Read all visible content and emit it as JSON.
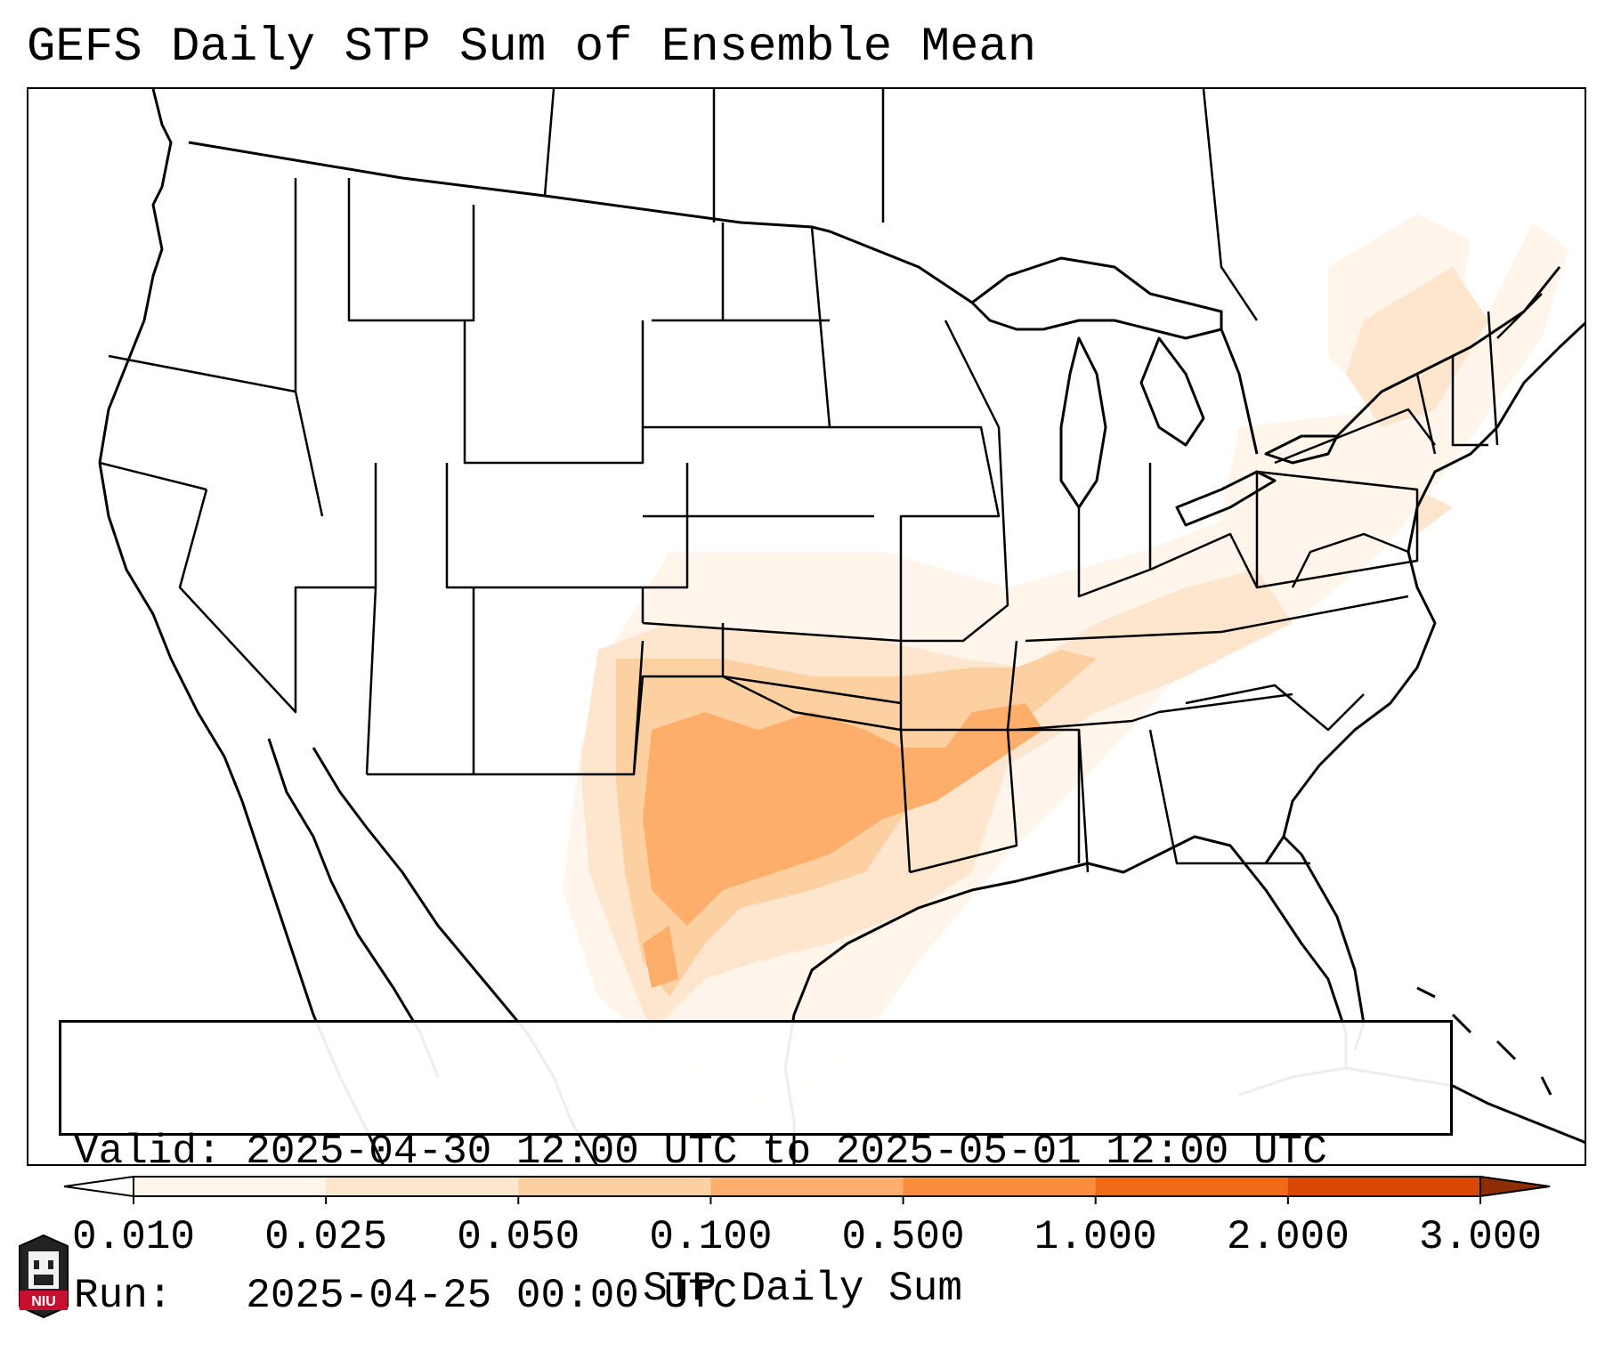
{
  "title": "GEFS Daily STP Sum of Ensemble Mean",
  "info": {
    "valid": "Valid: 2025-04-30 12:00 UTC to 2025-05-01 12:00 UTC",
    "run": "Run:   2025-04-25 00:00 UTC"
  },
  "colorbar": {
    "label": "STP Daily Sum",
    "ticks": [
      "0.010",
      "0.025",
      "0.050",
      "0.100",
      "0.500",
      "1.000",
      "2.000",
      "3.000"
    ],
    "colors": [
      "#fff5eb",
      "#fee6ce",
      "#fdd0a2",
      "#fdae6b",
      "#fd8d3c",
      "#f16913",
      "#d94801"
    ],
    "under_color": "#ffffff",
    "over_color": "#8c2d04"
  },
  "logo": {
    "text": "NIU",
    "name": "niu-logo"
  }
}
